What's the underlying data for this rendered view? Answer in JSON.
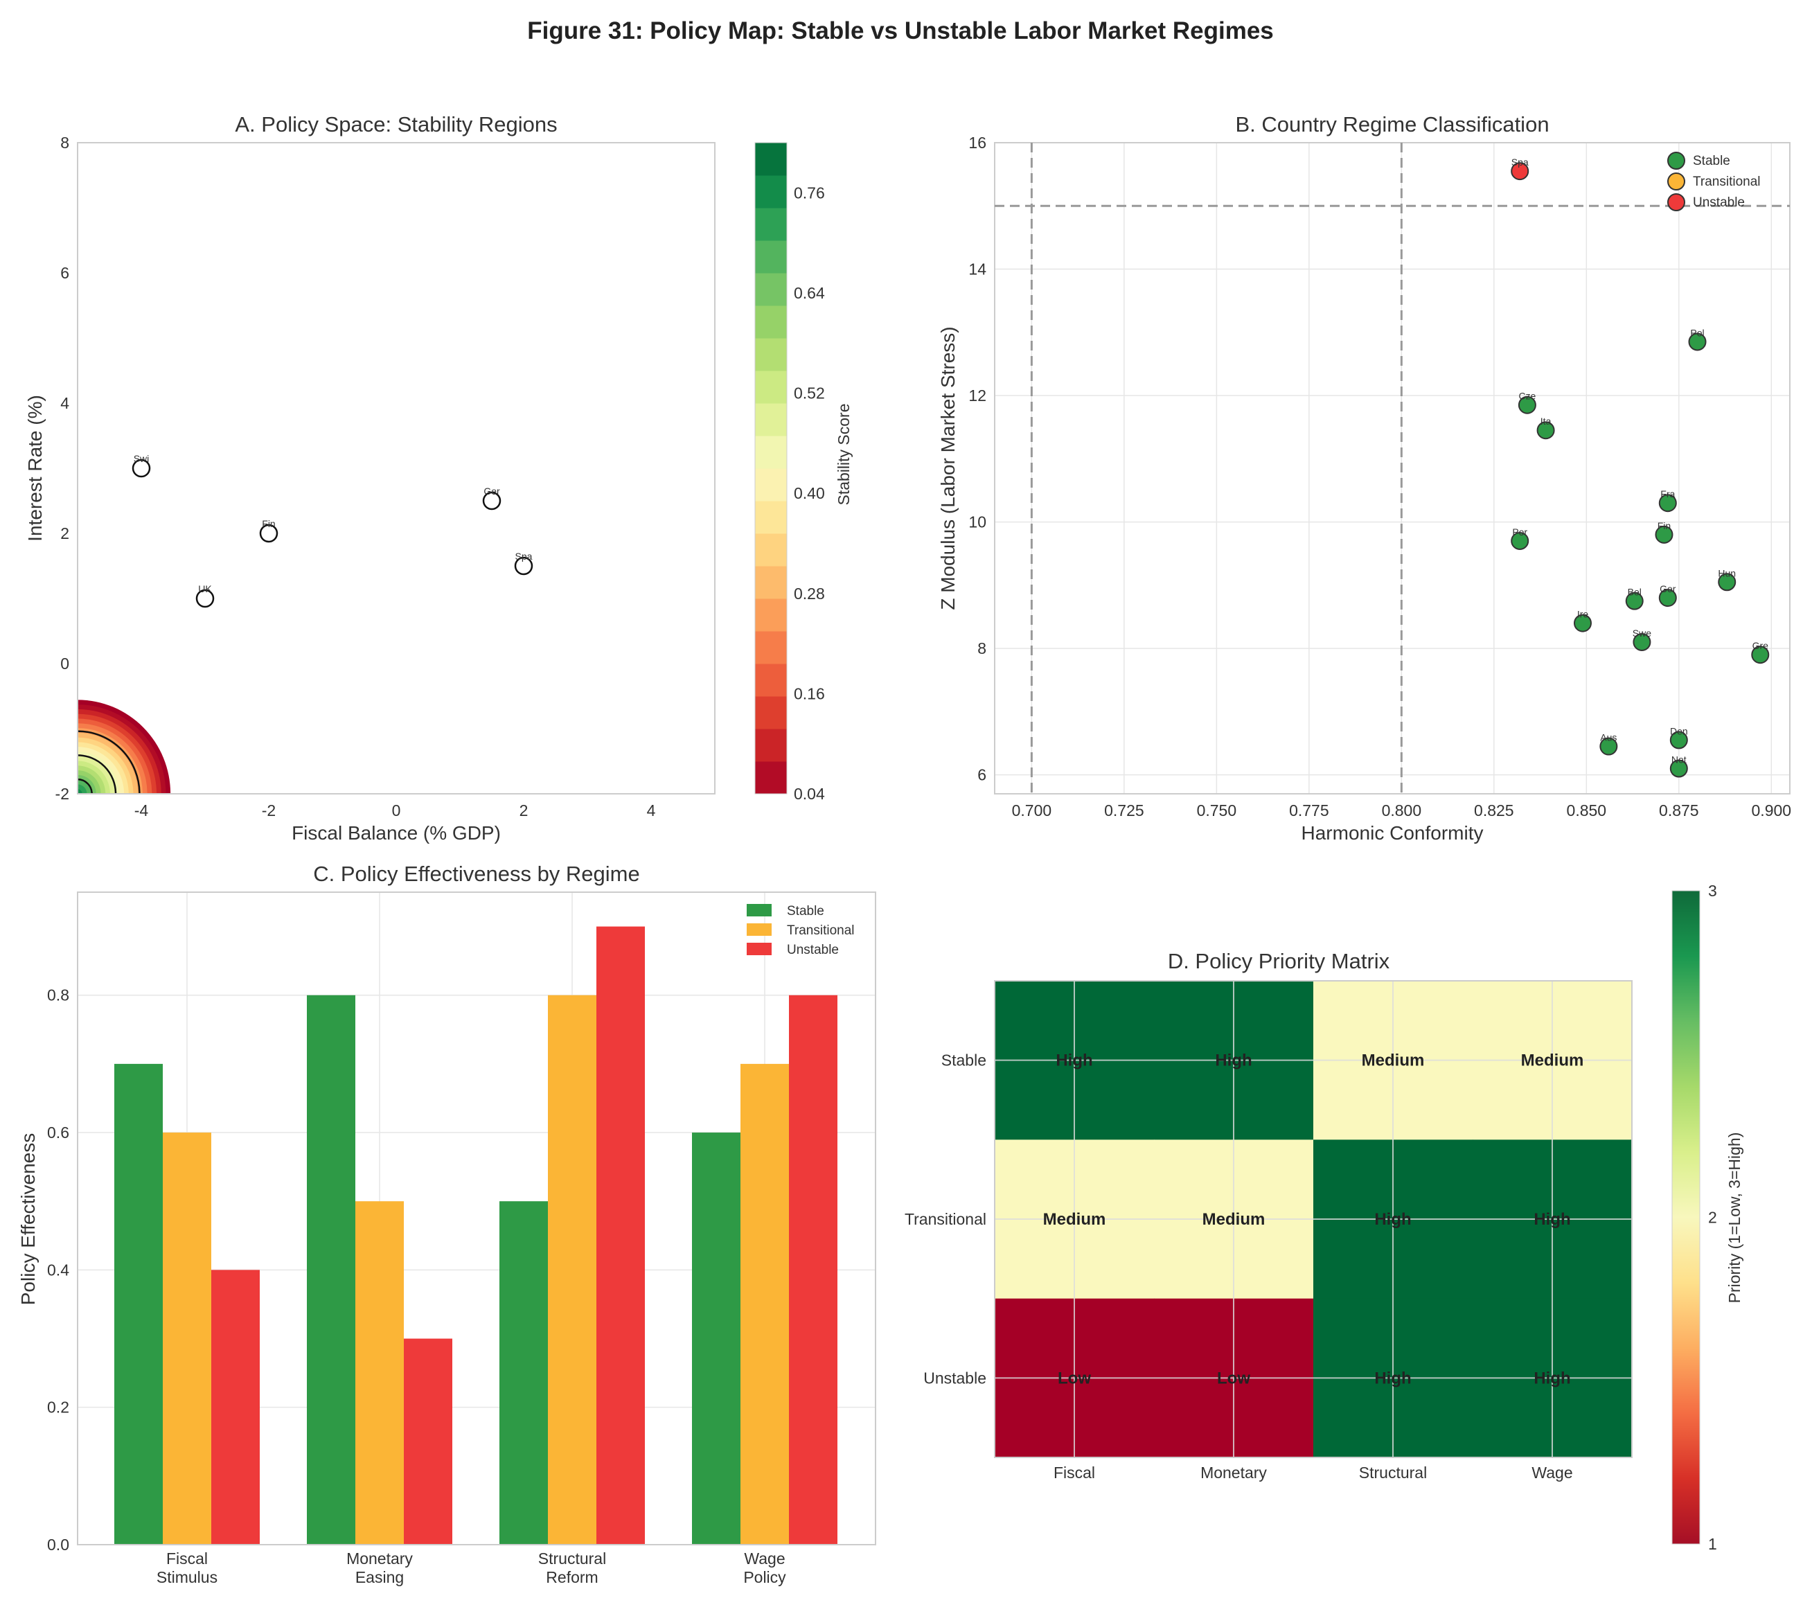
{
  "figure_title": "Figure 31: Policy Map: Stable vs Unstable Labor Market Regimes",
  "colors": {
    "stable": "#2e9a46",
    "transitional": "#fbb536",
    "unstable": "#ee3a3a"
  },
  "chart_data": [
    {
      "id": "A",
      "type": "heatmap",
      "title": "A. Policy Space: Stability Regions",
      "xlabel": "Fiscal Balance (% GDP)",
      "ylabel": "Interest Rate (%)",
      "xlim": [
        -5,
        5
      ],
      "ylim": [
        -2,
        8
      ],
      "xticks": [
        -4,
        -2,
        0,
        2,
        4
      ],
      "xtick_labels": [
        "-4",
        "-2",
        "0",
        "2",
        "4"
      ],
      "yticks": [
        -2,
        0,
        2,
        4,
        6,
        8
      ],
      "ytick_labels": [
        "-2",
        "0",
        "2",
        "4",
        "6",
        "8"
      ],
      "colorbar": {
        "label": "Stability Score",
        "range": [
          0.04,
          0.82
        ],
        "ticks": [
          0.04,
          0.16,
          0.28,
          0.4,
          0.52,
          0.64,
          0.76
        ],
        "tick_labels": [
          "0.04",
          "0.16",
          "0.28",
          "0.40",
          "0.52",
          "0.64",
          "0.76"
        ]
      },
      "contour_levels": [
        0.3,
        0.5,
        0.7
      ],
      "points": [
        {
          "label": "Swi",
          "x": -4,
          "y": 3.0
        },
        {
          "label": "Fin",
          "x": -2,
          "y": 2.0
        },
        {
          "label": "UK",
          "x": -3,
          "y": 1.0
        },
        {
          "label": "Ger",
          "x": 1.5,
          "y": 2.5
        },
        {
          "label": "Spa",
          "x": 2.0,
          "y": 1.5
        }
      ]
    },
    {
      "id": "B",
      "type": "scatter",
      "title": "B. Country Regime Classification",
      "xlabel": "Harmonic Conformity",
      "ylabel": "Z Modulus (Labor Market Stress)",
      "xlim": [
        0.69,
        0.905
      ],
      "ylim": [
        5.7,
        16
      ],
      "xticks": [
        0.7,
        0.725,
        0.75,
        0.775,
        0.8,
        0.825,
        0.85,
        0.875,
        0.9
      ],
      "xtick_labels": [
        "0.700",
        "0.725",
        "0.750",
        "0.775",
        "0.800",
        "0.825",
        "0.850",
        "0.875",
        "0.900"
      ],
      "yticks": [
        6,
        8,
        10,
        12,
        14,
        16
      ],
      "ytick_labels": [
        "6",
        "8",
        "10",
        "12",
        "14",
        "16"
      ],
      "vlines": [
        0.7,
        0.8
      ],
      "hlines": [
        15.0
      ],
      "legend": [
        "Stable",
        "Transitional",
        "Unstable"
      ],
      "points": [
        {
          "label": "Spa",
          "x": 0.832,
          "y": 15.55,
          "regime": "unstable"
        },
        {
          "label": "Pol",
          "x": 0.88,
          "y": 12.85,
          "regime": "stable"
        },
        {
          "label": "Cze",
          "x": 0.834,
          "y": 11.85,
          "regime": "stable"
        },
        {
          "label": "Ita",
          "x": 0.839,
          "y": 11.45,
          "regime": "stable"
        },
        {
          "label": "Fra",
          "x": 0.872,
          "y": 10.3,
          "regime": "stable"
        },
        {
          "label": "Fin",
          "x": 0.871,
          "y": 9.8,
          "regime": "stable"
        },
        {
          "label": "Por",
          "x": 0.832,
          "y": 9.7,
          "regime": "stable"
        },
        {
          "label": "Hun",
          "x": 0.888,
          "y": 9.05,
          "regime": "stable"
        },
        {
          "label": "Bel",
          "x": 0.863,
          "y": 8.75,
          "regime": "stable"
        },
        {
          "label": "Ger",
          "x": 0.872,
          "y": 8.8,
          "regime": "stable"
        },
        {
          "label": "Ire",
          "x": 0.849,
          "y": 8.4,
          "regime": "stable"
        },
        {
          "label": "Swe",
          "x": 0.865,
          "y": 8.1,
          "regime": "stable"
        },
        {
          "label": "Gre",
          "x": 0.897,
          "y": 7.9,
          "regime": "stable"
        },
        {
          "label": "Den",
          "x": 0.875,
          "y": 6.55,
          "regime": "stable"
        },
        {
          "label": "Aus",
          "x": 0.856,
          "y": 6.45,
          "regime": "stable"
        },
        {
          "label": "Net",
          "x": 0.875,
          "y": 6.1,
          "regime": "stable"
        }
      ]
    },
    {
      "id": "C",
      "type": "bar",
      "title": "C. Policy Effectiveness by Regime",
      "xlabel": "",
      "ylabel": "Policy Effectiveness",
      "ylim": [
        0,
        0.95
      ],
      "yticks": [
        0.0,
        0.2,
        0.4,
        0.6,
        0.8
      ],
      "ytick_labels": [
        "0.0",
        "0.2",
        "0.4",
        "0.6",
        "0.8"
      ],
      "categories": [
        [
          "Fiscal",
          "Stimulus"
        ],
        [
          "Monetary",
          "Easing"
        ],
        [
          "Structural",
          "Reform"
        ],
        [
          "Wage",
          "Policy"
        ]
      ],
      "series": [
        {
          "name": "Stable",
          "values": [
            0.7,
            0.8,
            0.5,
            0.6
          ]
        },
        {
          "name": "Transitional",
          "values": [
            0.6,
            0.5,
            0.8,
            0.7
          ]
        },
        {
          "name": "Unstable",
          "values": [
            0.4,
            0.3,
            0.9,
            0.8
          ]
        }
      ]
    },
    {
      "id": "D",
      "type": "heatmap",
      "title": "D. Policy Priority Matrix",
      "rows": [
        "Stable",
        "Transitional",
        "Unstable"
      ],
      "cols": [
        "Fiscal",
        "Monetary",
        "Structural",
        "Wage"
      ],
      "values": [
        [
          3,
          3,
          2,
          2
        ],
        [
          2,
          2,
          3,
          3
        ],
        [
          1,
          1,
          3,
          3
        ]
      ],
      "cell_labels": [
        [
          "High",
          "High",
          "Medium",
          "Medium"
        ],
        [
          "Medium",
          "Medium",
          "High",
          "High"
        ],
        [
          "Low",
          "Low",
          "High",
          "High"
        ]
      ],
      "colorbar": {
        "label": "Priority (1=Low, 3=High)",
        "range": [
          1,
          3
        ],
        "ticks": [
          1,
          2,
          3
        ],
        "tick_labels": [
          "1",
          "2",
          "3"
        ]
      }
    }
  ]
}
